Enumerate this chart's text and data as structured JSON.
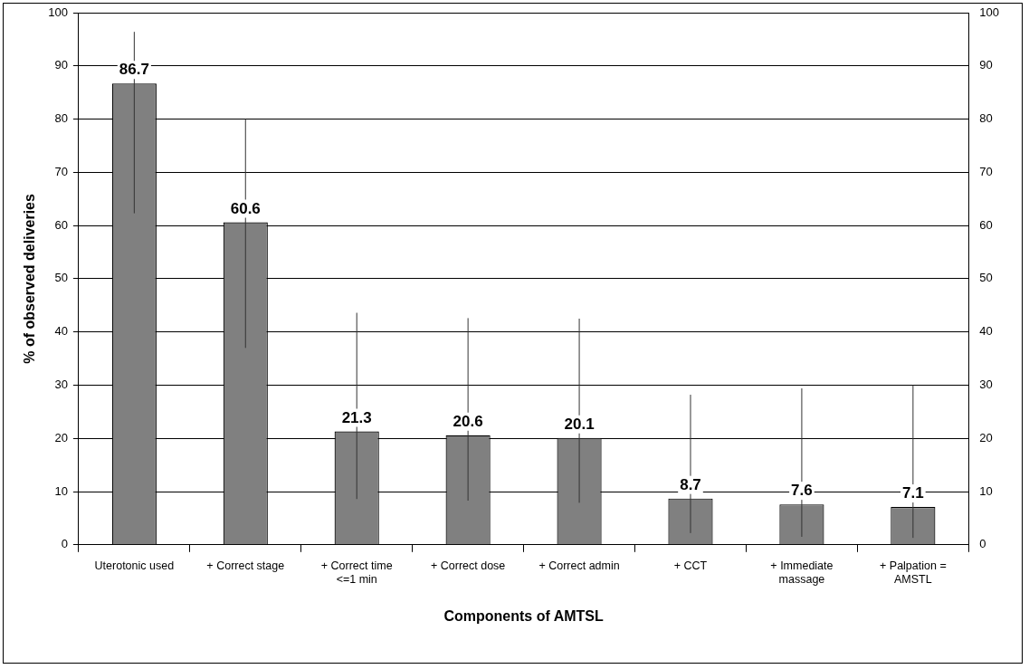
{
  "chart_data": {
    "type": "bar",
    "xlabel": "Components of AMTSL",
    "ylabel": "% of observed deliveries",
    "categories": [
      "Uterotonic used",
      "+ Correct stage",
      "+ Correct time <=1 min",
      "+ Correct dose",
      "+ Correct admin",
      "+ CCT",
      "+ Immediate massage",
      "+ Palpation = AMSTL"
    ],
    "values": [
      86.7,
      60.6,
      21.3,
      20.6,
      20.1,
      8.7,
      7.6,
      7.1
    ],
    "color": "#808080",
    "errors": [
      [
        62.3,
        96.4
      ],
      [
        37.0,
        80.0
      ],
      [
        8.6,
        43.6
      ],
      [
        8.3,
        42.6
      ],
      [
        7.9,
        42.5
      ],
      [
        2.2,
        28.2
      ],
      [
        1.5,
        29.4
      ],
      [
        1.3,
        30.0
      ]
    ],
    "data_labels": true,
    "ylim": [
      0,
      100
    ],
    "yticks": [
      0,
      10,
      20,
      30,
      40,
      50,
      60,
      70,
      80,
      90,
      100
    ],
    "y2lim": [
      0,
      100
    ],
    "y2ticks": [
      0,
      10,
      20,
      30,
      40,
      50,
      60,
      70,
      80,
      90,
      100
    ],
    "grid": "y",
    "legend": false
  }
}
